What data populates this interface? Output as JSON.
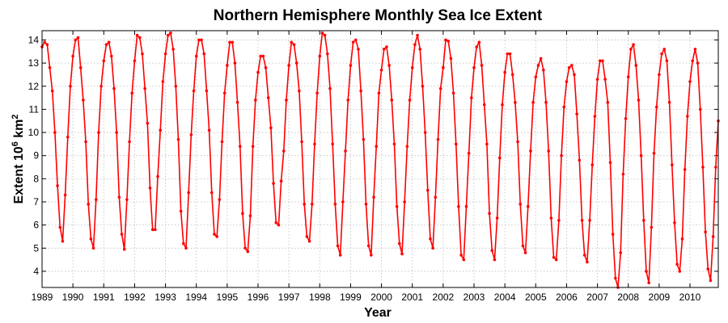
{
  "chart_data": {
    "type": "line",
    "title": "Northern Hemisphere Monthly Sea Ice Extent",
    "xlabel": "Year",
    "ylabel_main": "Extent 10",
    "ylabel_exp": "6",
    "ylabel_unit": " km",
    "ylabel_unit_exp": "2",
    "xlim": [
      1989.0,
      2010.917
    ],
    "ylim": [
      3.3,
      14.4
    ],
    "x_ticks": [
      "1989",
      "1990",
      "1991",
      "1992",
      "1993",
      "1994",
      "1995",
      "1996",
      "1997",
      "1998",
      "1999",
      "2000",
      "2001",
      "2002",
      "2003",
      "2004",
      "2005",
      "2006",
      "2007",
      "2008",
      "2009",
      "2010"
    ],
    "y_ticks": [
      "4",
      "5",
      "6",
      "7",
      "8",
      "9",
      "10",
      "11",
      "12",
      "13",
      "14"
    ],
    "grid": true,
    "line_color": "#ff0000",
    "series": [
      {
        "start_year": 1989,
        "start_month": 1,
        "values": [
          13.7,
          13.9,
          13.8,
          12.8,
          11.8,
          10.0,
          7.7,
          5.9,
          5.3,
          7.3,
          9.8,
          12.0,
          13.3,
          14.0,
          14.1,
          12.8,
          11.4,
          9.6,
          6.9,
          5.4,
          5.0,
          7.1,
          10.0,
          12.0,
          13.1,
          13.8,
          13.9,
          13.3,
          11.9,
          10.0,
          7.2,
          5.6,
          4.95,
          7.1,
          9.6,
          11.7,
          13.1,
          14.2,
          14.1,
          13.4,
          11.9,
          10.4,
          7.6,
          5.8,
          5.8,
          8.1,
          10.1,
          12.2,
          13.4,
          14.2,
          14.3,
          13.6,
          12.0,
          9.7,
          6.6,
          5.2,
          5.0,
          7.4,
          9.9,
          11.8,
          13.3,
          14.0,
          14.0,
          13.4,
          11.8,
          10.1,
          7.4,
          5.6,
          5.5,
          7.1,
          9.6,
          11.7,
          12.9,
          13.9,
          13.9,
          13.0,
          11.3,
          9.4,
          6.5,
          5.0,
          4.85,
          6.4,
          9.4,
          11.4,
          12.6,
          13.3,
          13.3,
          12.8,
          11.5,
          10.2,
          7.8,
          6.1,
          6.0,
          7.9,
          9.2,
          11.4,
          12.9,
          13.9,
          13.8,
          13.0,
          11.8,
          9.6,
          6.9,
          5.5,
          5.3,
          6.9,
          9.5,
          11.7,
          13.3,
          14.3,
          14.2,
          13.4,
          11.9,
          9.5,
          6.9,
          5.1,
          4.7,
          7.0,
          9.2,
          11.4,
          12.9,
          13.9,
          14.0,
          13.6,
          11.8,
          9.7,
          6.9,
          5.1,
          4.7,
          7.2,
          9.4,
          11.7,
          12.7,
          13.6,
          13.7,
          12.9,
          11.4,
          9.5,
          6.8,
          5.2,
          4.75,
          7.0,
          9.4,
          11.4,
          12.8,
          13.8,
          14.2,
          13.6,
          12.0,
          10.0,
          7.5,
          5.4,
          5.0,
          7.2,
          9.7,
          11.9,
          12.8,
          14.0,
          13.95,
          13.2,
          11.7,
          9.5,
          6.8,
          4.7,
          4.5,
          6.8,
          9.1,
          11.5,
          12.8,
          13.7,
          13.9,
          12.9,
          11.2,
          9.5,
          6.5,
          4.9,
          4.5,
          6.3,
          8.9,
          11.2,
          12.6,
          13.4,
          13.4,
          12.5,
          11.3,
          9.6,
          6.9,
          5.1,
          4.8,
          6.8,
          9.2,
          11.3,
          12.4,
          12.9,
          13.2,
          12.7,
          11.3,
          9.2,
          6.3,
          4.6,
          4.5,
          6.2,
          9.0,
          11.1,
          12.2,
          12.8,
          12.9,
          12.5,
          10.8,
          8.8,
          6.2,
          4.7,
          4.4,
          6.2,
          8.6,
          10.7,
          12.3,
          13.1,
          13.1,
          12.3,
          11.3,
          8.7,
          5.6,
          3.7,
          3.3,
          4.8,
          8.2,
          10.6,
          12.4,
          13.6,
          13.8,
          12.9,
          11.4,
          9.0,
          6.2,
          4.0,
          3.5,
          5.9,
          9.1,
          11.1,
          12.5,
          13.4,
          13.6,
          13.1,
          11.3,
          8.6,
          6.1,
          4.3,
          4.0,
          5.4,
          8.4,
          10.7,
          12.2,
          13.1,
          13.6,
          13.0,
          11.0,
          8.5,
          5.7,
          4.1,
          3.6,
          5.5,
          8.5,
          10.5
        ]
      }
    ]
  }
}
